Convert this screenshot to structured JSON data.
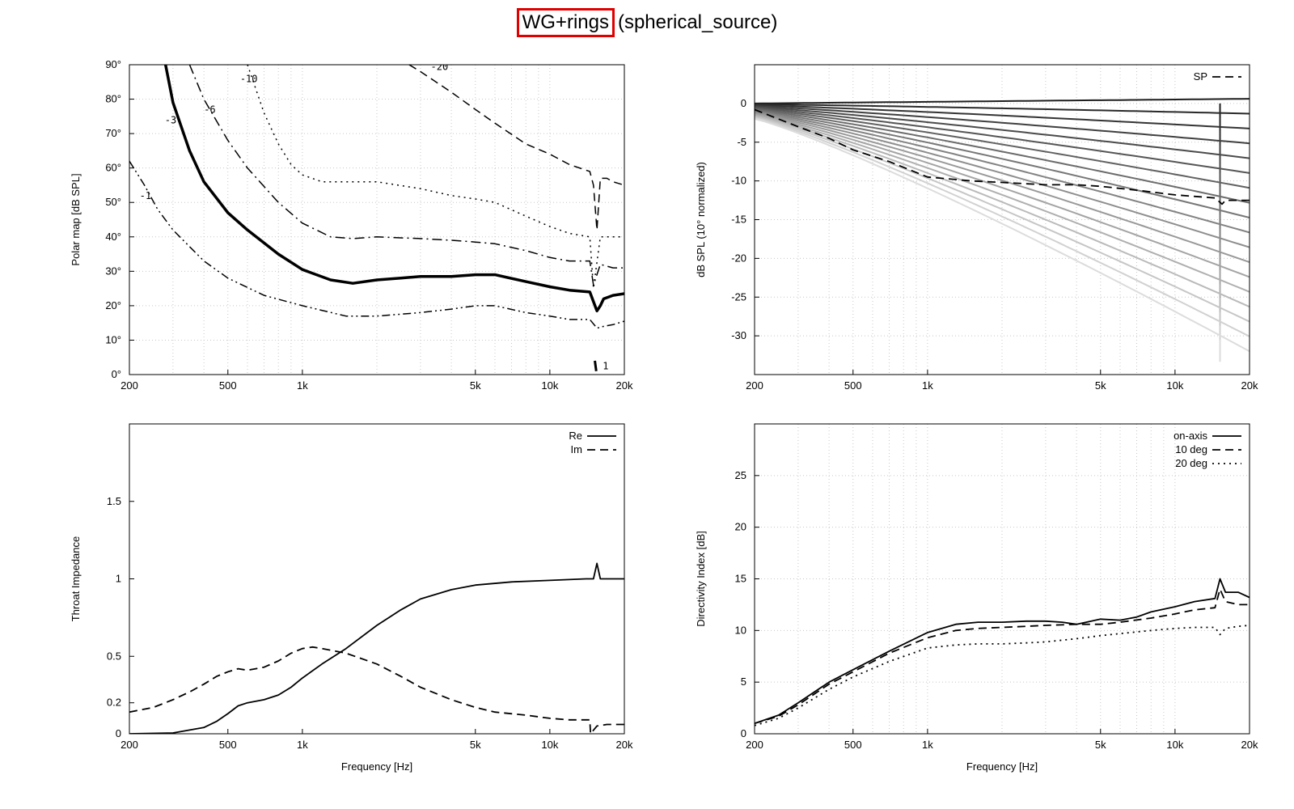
{
  "title": {
    "highlighted": "WG+rings",
    "rest": "(spherical_source)",
    "highlight_color": "#e00000"
  },
  "chart_data": [
    {
      "id": "polar",
      "type": "line",
      "ylabel": "Polar map [dB SPL]",
      "xlabel": "",
      "xscale": "log",
      "xlim": [
        200,
        20000
      ],
      "ylim": [
        0,
        90
      ],
      "x_ticks": [
        [
          200,
          "200"
        ],
        [
          500,
          "500"
        ],
        [
          1000,
          "1k"
        ],
        [
          5000,
          "5k"
        ],
        [
          10000,
          "10k"
        ],
        [
          20000,
          "20k"
        ]
      ],
      "y_ticks": [
        [
          0,
          "0°"
        ],
        [
          10,
          "10°"
        ],
        [
          20,
          "20°"
        ],
        [
          30,
          "30°"
        ],
        [
          40,
          "40°"
        ],
        [
          50,
          "50°"
        ],
        [
          60,
          "60°"
        ],
        [
          70,
          "70°"
        ],
        [
          80,
          "80°"
        ],
        [
          90,
          "90°"
        ]
      ],
      "grid": true,
      "series": [
        {
          "name": "-1",
          "style": "dashdotdot",
          "width": 1.5,
          "color": "#000000",
          "x": [
            200,
            230,
            260,
            300,
            400,
            500,
            700,
            1000,
            1500,
            2000,
            3000,
            4000,
            5000,
            6000,
            8000,
            10000,
            12000,
            14500,
            15500,
            16500,
            18000,
            20000
          ],
          "y": [
            62,
            55,
            48,
            42,
            33,
            28,
            23,
            20,
            17,
            17,
            18,
            19,
            20,
            20,
            18,
            17,
            16,
            16,
            13.5,
            14,
            14.5,
            15.5
          ],
          "label_at": [
            220,
            51
          ]
        },
        {
          "name": "-3",
          "style": "solid",
          "width": 3.5,
          "color": "#000000",
          "x": [
            280,
            300,
            350,
            400,
            500,
            600,
            800,
            1000,
            1300,
            1600,
            2000,
            2500,
            3000,
            4000,
            5000,
            6000,
            8000,
            10000,
            12000,
            14500,
            15500,
            16000,
            16500,
            18000,
            20000
          ],
          "y": [
            90,
            79,
            65,
            56,
            47,
            42,
            35,
            30.5,
            27.5,
            26.5,
            27.5,
            28,
            28.5,
            28.5,
            29,
            29,
            27,
            25.5,
            24.5,
            24,
            18.5,
            20,
            22,
            23,
            23.5
          ],
          "label_at": [
            278,
            73
          ]
        },
        {
          "name": "-6",
          "style": "dashdot",
          "width": 1.5,
          "color": "#000000",
          "x": [
            350,
            400,
            500,
            600,
            800,
            1000,
            1300,
            1600,
            2000,
            3000,
            4000,
            5000,
            6000,
            8000,
            10000,
            12000,
            14500,
            15000,
            16000,
            17000,
            18000,
            20000
          ],
          "y": [
            90,
            80,
            68,
            60,
            50,
            44,
            40,
            39.5,
            40,
            39.5,
            39,
            38.5,
            38,
            36,
            34,
            33,
            33,
            26,
            32,
            31.5,
            31,
            31
          ],
          "label_at": [
            400,
            76
          ]
        },
        {
          "name": "-10",
          "style": "dotted",
          "width": 1.5,
          "color": "#000000",
          "x": [
            600,
            700,
            800,
            900,
            1000,
            1200,
            1500,
            2000,
            3000,
            4000,
            5000,
            6000,
            8000,
            10000,
            12000,
            14500,
            15000,
            16000,
            17000,
            18000,
            20000
          ],
          "y": [
            90,
            76,
            67,
            61,
            58,
            56,
            56,
            56,
            54,
            52,
            51,
            50,
            46,
            43,
            41,
            40,
            25,
            40,
            40,
            40,
            40
          ],
          "label_at": [
            560,
            85
          ]
        },
        {
          "name": "-20",
          "style": "dashed",
          "width": 1.5,
          "color": "#000000",
          "x": [
            2700,
            3000,
            4000,
            5000,
            6000,
            8000,
            10000,
            12000,
            14500,
            15000,
            15500,
            16000,
            17000,
            18000,
            20000
          ],
          "y": [
            90,
            88,
            82,
            77,
            73,
            67,
            64,
            61,
            59,
            55,
            42,
            57,
            57,
            56,
            55
          ],
          "label_at": [
            3300,
            88.5
          ]
        }
      ],
      "small_contours": [
        {
          "x": [
            15200,
            15400
          ],
          "y": [
            4,
            1
          ],
          "label": "1"
        }
      ]
    },
    {
      "id": "normalized",
      "type": "line",
      "ylabel": "dB SPL (10° normalized)",
      "xlabel": "",
      "xscale": "log",
      "xlim": [
        200,
        20000
      ],
      "ylim": [
        -35,
        5
      ],
      "x_ticks": [
        [
          200,
          "200"
        ],
        [
          500,
          "500"
        ],
        [
          1000,
          "1k"
        ],
        [
          5000,
          "5k"
        ],
        [
          10000,
          "10k"
        ],
        [
          20000,
          "20k"
        ]
      ],
      "y_ticks": [
        [
          0,
          "0"
        ],
        [
          -5,
          "-5"
        ],
        [
          -10,
          "-10"
        ],
        [
          -15,
          "-15"
        ],
        [
          -20,
          "-20"
        ],
        [
          -25,
          "-25"
        ],
        [
          -30,
          "-30"
        ]
      ],
      "grid": true,
      "legend": {
        "position": "top-right",
        "entries": [
          "SP"
        ]
      },
      "family_count": 18,
      "family_note": "grey family of normalized off-axis curves",
      "series": [
        {
          "name": "SP",
          "style": "dashed",
          "color": "#000000",
          "x": [
            200,
            300,
            400,
            500,
            700,
            1000,
            1500,
            2000,
            3000,
            4000,
            5000,
            7000,
            10000,
            14500,
            15500,
            16000,
            18000,
            20000
          ],
          "y": [
            -0.8,
            -3,
            -4.5,
            -6,
            -7.5,
            -9.5,
            -10,
            -10.2,
            -10.5,
            -10.5,
            -10.7,
            -11.2,
            -11.8,
            -12.2,
            -13,
            -12.5,
            -12.5,
            -12.5
          ]
        }
      ]
    },
    {
      "id": "impedance",
      "type": "line",
      "ylabel": "Throat Impedance",
      "xlabel": "Frequency [Hz]",
      "xscale": "log",
      "xlim": [
        200,
        20000
      ],
      "ylim": [
        0,
        2
      ],
      "x_ticks": [
        [
          200,
          "200"
        ],
        [
          500,
          "500"
        ],
        [
          1000,
          "1k"
        ],
        [
          5000,
          "5k"
        ],
        [
          10000,
          "10k"
        ],
        [
          20000,
          "20k"
        ]
      ],
      "y_ticks": [
        [
          0,
          "0"
        ],
        [
          0.2,
          "0.2"
        ],
        [
          0.5,
          "0.5"
        ],
        [
          1,
          "1"
        ],
        [
          1.5,
          "1.5"
        ]
      ],
      "grid": false,
      "legend": {
        "position": "top-right",
        "entries": [
          "Re",
          "Im"
        ]
      },
      "series": [
        {
          "name": "Re",
          "style": "solid",
          "color": "#000000",
          "x": [
            200,
            300,
            400,
            450,
            500,
            550,
            600,
            700,
            800,
            900,
            1000,
            1200,
            1500,
            2000,
            2500,
            3000,
            4000,
            5000,
            7000,
            10000,
            14000,
            15000,
            15500,
            16000,
            20000
          ],
          "y": [
            0,
            0.005,
            0.04,
            0.08,
            0.13,
            0.18,
            0.2,
            0.22,
            0.25,
            0.3,
            0.36,
            0.45,
            0.55,
            0.7,
            0.8,
            0.87,
            0.93,
            0.96,
            0.98,
            0.99,
            1.0,
            1.0,
            1.1,
            1.0,
            1.0
          ]
        },
        {
          "name": "Im",
          "style": "dashed",
          "color": "#000000",
          "x": [
            200,
            250,
            300,
            350,
            400,
            450,
            500,
            550,
            600,
            700,
            800,
            900,
            1000,
            1100,
            1200,
            1500,
            2000,
            2500,
            3000,
            4000,
            5000,
            6000,
            8000,
            10000,
            12000,
            14500,
            14600,
            15500,
            17000,
            20000
          ],
          "y": [
            0.14,
            0.17,
            0.22,
            0.27,
            0.32,
            0.37,
            0.4,
            0.42,
            0.41,
            0.43,
            0.47,
            0.52,
            0.55,
            0.56,
            0.55,
            0.52,
            0.45,
            0.37,
            0.3,
            0.22,
            0.17,
            0.14,
            0.12,
            0.1,
            0.09,
            0.09,
            0,
            0.05,
            0.06,
            0.06
          ]
        }
      ]
    },
    {
      "id": "directivity",
      "type": "line",
      "ylabel": "Directivity Index [dB]",
      "xlabel": "Frequency [Hz]",
      "xscale": "log",
      "xlim": [
        200,
        20000
      ],
      "ylim": [
        0,
        30
      ],
      "x_ticks": [
        [
          200,
          "200"
        ],
        [
          500,
          "500"
        ],
        [
          1000,
          "1k"
        ],
        [
          5000,
          "5k"
        ],
        [
          10000,
          "10k"
        ],
        [
          20000,
          "20k"
        ]
      ],
      "y_ticks": [
        [
          0,
          "0"
        ],
        [
          5,
          "5"
        ],
        [
          10,
          "10"
        ],
        [
          15,
          "15"
        ],
        [
          20,
          "20"
        ],
        [
          25,
          "25"
        ]
      ],
      "grid": true,
      "legend": {
        "position": "top-right",
        "entries": [
          "on-axis",
          "10 deg",
          "20 deg"
        ]
      },
      "series": [
        {
          "name": "on-axis",
          "style": "solid",
          "color": "#000000",
          "x": [
            200,
            250,
            300,
            400,
            500,
            700,
            1000,
            1300,
            1600,
            2000,
            2500,
            3000,
            3500,
            4000,
            5000,
            6000,
            7000,
            8000,
            10000,
            12000,
            14500,
            15200,
            16000,
            18000,
            20000
          ],
          "y": [
            1,
            1.8,
            3,
            5,
            6.2,
            8,
            9.8,
            10.6,
            10.8,
            10.8,
            10.9,
            10.9,
            10.8,
            10.6,
            11.1,
            11.0,
            11.3,
            11.8,
            12.3,
            12.8,
            13.1,
            15,
            13.7,
            13.7,
            13.2
          ]
        },
        {
          "name": "10 deg",
          "style": "dashed",
          "color": "#000000",
          "x": [
            200,
            250,
            300,
            400,
            500,
            700,
            1000,
            1300,
            1600,
            2000,
            2500,
            3000,
            4000,
            5000,
            6000,
            8000,
            10000,
            12000,
            14500,
            15200,
            16000,
            18000,
            20000
          ],
          "y": [
            1,
            1.7,
            2.8,
            4.8,
            6.0,
            7.8,
            9.3,
            10.0,
            10.2,
            10.3,
            10.4,
            10.5,
            10.6,
            10.6,
            10.8,
            11.2,
            11.6,
            12.0,
            12.2,
            14,
            12.8,
            12.5,
            12.5
          ]
        },
        {
          "name": "20 deg",
          "style": "dotted",
          "color": "#000000",
          "x": [
            200,
            250,
            300,
            400,
            500,
            700,
            1000,
            1300,
            1600,
            2000,
            2500,
            3000,
            4000,
            5000,
            6000,
            8000,
            10000,
            12000,
            14500,
            15200,
            16000,
            18000,
            20000
          ],
          "y": [
            0.8,
            1.5,
            2.5,
            4.3,
            5.5,
            7,
            8.3,
            8.6,
            8.7,
            8.7,
            8.8,
            8.9,
            9.2,
            9.5,
            9.7,
            10.0,
            10.2,
            10.3,
            10.3,
            9.6,
            10.2,
            10.4,
            10.5
          ]
        }
      ]
    }
  ]
}
